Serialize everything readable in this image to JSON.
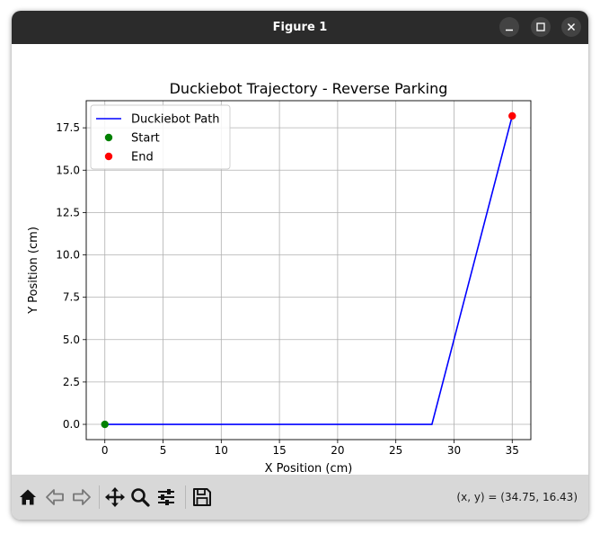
{
  "window": {
    "title": "Figure 1"
  },
  "toolbar": {
    "buttons": [
      "home-icon",
      "back-arrow-icon",
      "forward-arrow-icon",
      "pan-icon",
      "zoom-icon",
      "configure-subplots-icon",
      "save-icon"
    ],
    "coords_text": "(x, y) = (34.75, 16.43)"
  },
  "chart_data": {
    "type": "line",
    "title": "Duckiebot Trajectory - Reverse Parking",
    "xlabel": "X Position (cm)",
    "ylabel": "Y Position (cm)",
    "xlim": [
      -1.6,
      36.6
    ],
    "ylim": [
      -0.9,
      19.1
    ],
    "xticks": [
      0,
      5,
      10,
      15,
      20,
      25,
      30,
      35
    ],
    "yticks": [
      0.0,
      2.5,
      5.0,
      7.5,
      10.0,
      12.5,
      15.0,
      17.5
    ],
    "xtick_labels": [
      "0",
      "5",
      "10",
      "15",
      "20",
      "25",
      "30",
      "35"
    ],
    "ytick_labels": [
      "0.0",
      "2.5",
      "5.0",
      "7.5",
      "10.0",
      "12.5",
      "15.0",
      "17.5"
    ],
    "grid": true,
    "legend_position": "top-left",
    "series": [
      {
        "name": "Duckiebot Path",
        "kind": "line",
        "color": "#0000ff",
        "x": [
          0,
          28.1,
          35
        ],
        "y": [
          0,
          0,
          18.2
        ]
      },
      {
        "name": "Start",
        "kind": "scatter",
        "color": "#008000",
        "x": [
          0
        ],
        "y": [
          0
        ]
      },
      {
        "name": "End",
        "kind": "scatter",
        "color": "#ff0000",
        "x": [
          35
        ],
        "y": [
          18.2
        ]
      }
    ]
  }
}
